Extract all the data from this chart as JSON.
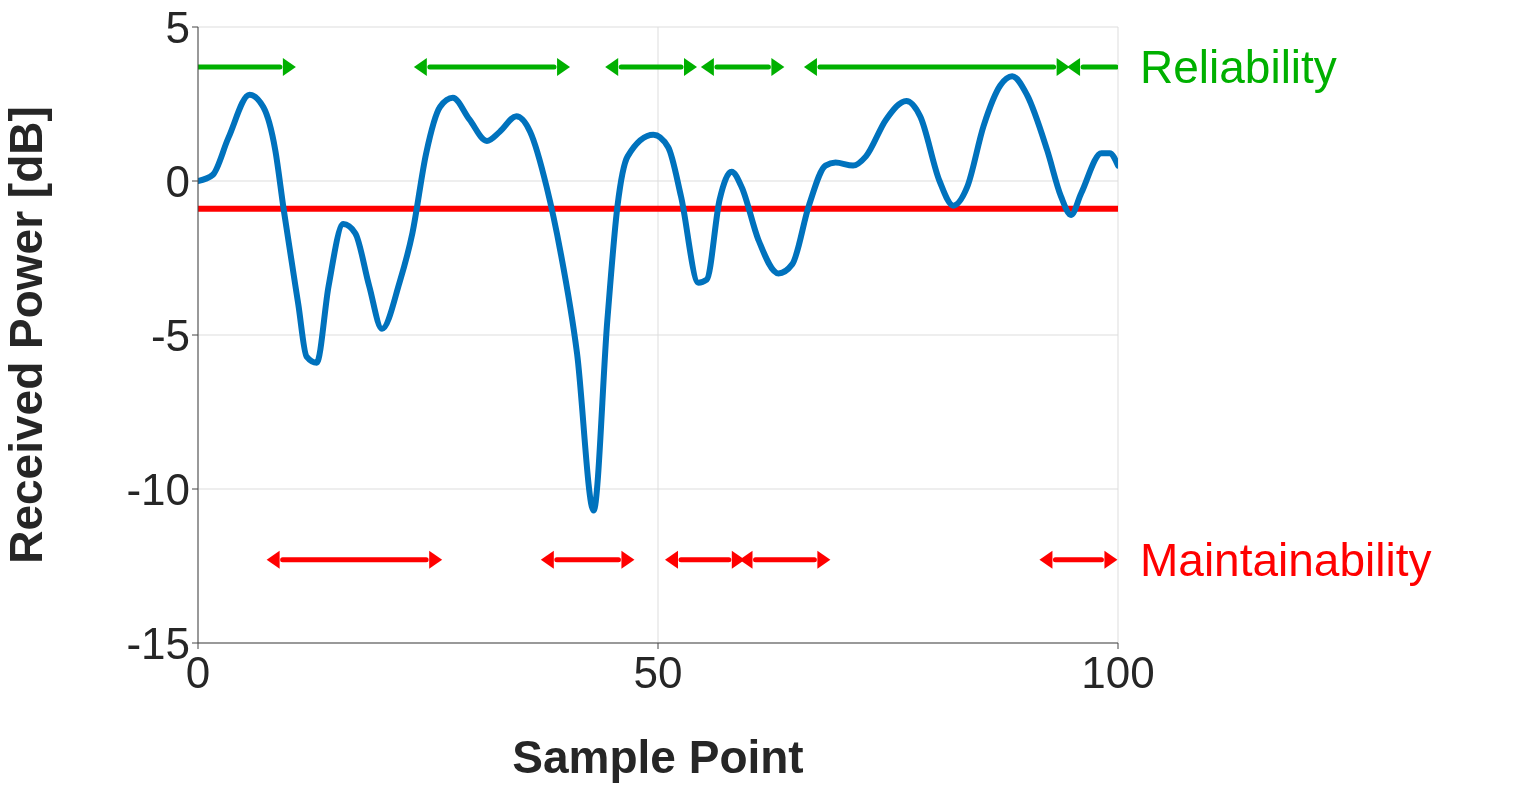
{
  "chart_data": {
    "type": "line",
    "xlabel": "Sample Point",
    "ylabel": "Received Power [dB]",
    "xlim": [
      0,
      100
    ],
    "xticks": [
      0,
      50,
      100
    ],
    "ylim": [
      -15,
      5
    ],
    "yticks": [
      -15,
      -10,
      -5,
      0,
      5
    ],
    "grid": true,
    "legend": "right",
    "series": [
      {
        "color": "#0072bd",
        "x": [
          0,
          1.6,
          3.3,
          5.6,
          7.1,
          8.4,
          9.3,
          10.9,
          11.8,
          12.9,
          14.2,
          15.8,
          17.1,
          18.6,
          20.0,
          21.9,
          23.3,
          24.8,
          26.3,
          27.7,
          29.5,
          31.4,
          32.8,
          34.6,
          36.1,
          37.9,
          39.4,
          41.2,
          43.0,
          44.5,
          45.6,
          46.7,
          49.5,
          51.1,
          52.5,
          54.4,
          55.3,
          56.7,
          58.0,
          59.1,
          60.9,
          63.1,
          64.6,
          66.4,
          68.2,
          69.3,
          71.2,
          72.6,
          74.8,
          77.0,
          78.5,
          80.6,
          82.1,
          83.6,
          85.4,
          87.2,
          88.5,
          90.1,
          92.3,
          93.8,
          94.9,
          96.0,
          98.2,
          99.1,
          100
        ],
        "values": [
          0,
          0.2,
          1.4,
          2.8,
          2.4,
          1.0,
          -0.9,
          -4.0,
          -5.7,
          -5.9,
          -3.4,
          -1.4,
          -1.7,
          -3.4,
          -4.8,
          -3.3,
          -1.7,
          0.9,
          2.4,
          2.7,
          2.0,
          1.3,
          1.6,
          2.1,
          1.6,
          -0.2,
          -2.3,
          -5.6,
          -10.7,
          -4.5,
          -0.8,
          0.8,
          1.5,
          1.1,
          -0.5,
          -3.3,
          -3.2,
          -0.6,
          0.3,
          -0.2,
          -1.9,
          -3.0,
          -2.7,
          -0.8,
          0.5,
          0.6,
          0.5,
          0.8,
          2.0,
          2.6,
          2.1,
          0.0,
          -0.8,
          -0.2,
          1.8,
          3.1,
          3.4,
          2.8,
          1.0,
          -0.5,
          -1.1,
          -0.4,
          0.9,
          0.9,
          0.5
        ]
      },
      {
        "name": "Reliability",
        "color": "#00b000",
        "x": [
          0,
          8.9,
          null,
          25.2,
          38.7,
          null,
          46.0,
          52.5,
          null,
          56.4,
          62.0,
          null,
          67.6,
          93.0,
          null,
          96.2,
          99.8
        ],
        "values": [
          3.7,
          3.7,
          null,
          3.7,
          3.7,
          null,
          3.7,
          3.7,
          null,
          3.7,
          3.7,
          null,
          3.7,
          3.7,
          null,
          3.7,
          3.7
        ]
      },
      {
        "name": "Maintainability",
        "color": "#ff0000",
        "x": [
          9.2,
          24.8,
          null,
          39.0,
          45.7,
          null,
          52.5,
          57.7,
          null,
          60.6,
          67.0,
          null,
          93.2,
          98.2
        ],
        "values": [
          -12.3,
          -12.3,
          null,
          -12.3,
          -12.3,
          null,
          -12.3,
          -12.3,
          null,
          -12.3,
          -12.3,
          null,
          -12.3,
          -12.3
        ]
      }
    ],
    "ref_lines": [
      {
        "axis": "y",
        "value": -0.9,
        "color": "#ff0000"
      }
    ]
  }
}
